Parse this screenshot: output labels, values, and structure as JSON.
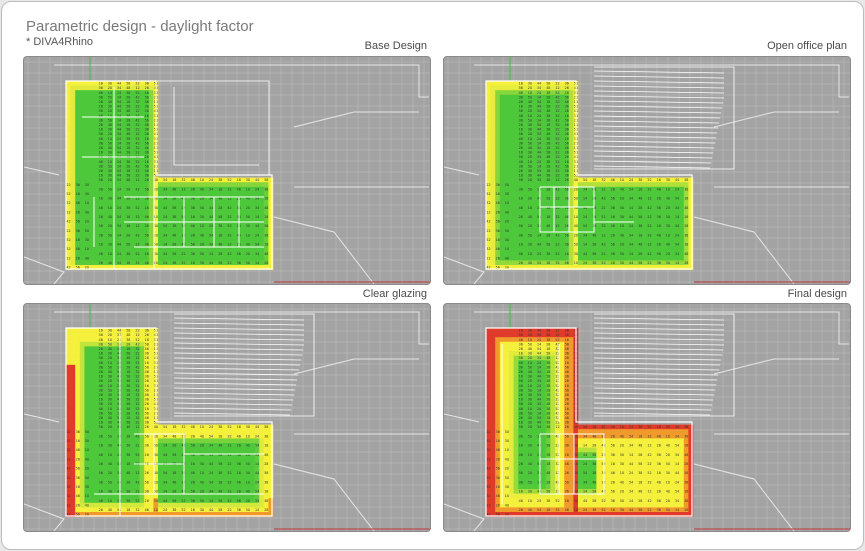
{
  "header": {
    "title": "Parametric design - daylight factor",
    "subtitle": "* DIVA4Rhino"
  },
  "panels": [
    {
      "label": "Base Design",
      "variant": "base"
    },
    {
      "label": "Open office plan",
      "variant": "open"
    },
    {
      "label": "Clear glazing",
      "variant": "clear"
    },
    {
      "label": "Final design",
      "variant": "final"
    }
  ],
  "colors": {
    "background": "#a3a3a3",
    "grid": "#bdbdbd",
    "red": "#e03a2a",
    "orange": "#f19a2c",
    "yellow": "#f4f03c",
    "green": "#4cc83a",
    "white_lines": "#ffffff"
  }
}
